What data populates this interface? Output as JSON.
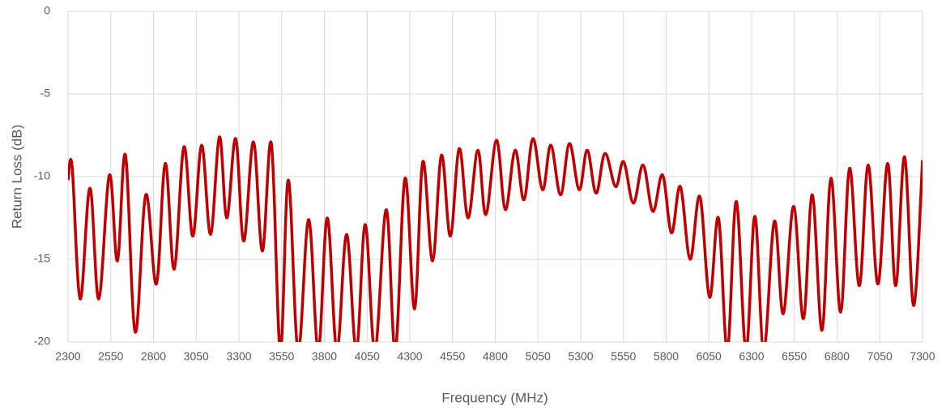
{
  "chart_data": {
    "type": "line",
    "x_label": "Frequency (MHz)",
    "y_label": "Return Loss (dB)",
    "x": [
      2300,
      2324,
      2371,
      2428,
      2480,
      2542,
      2589,
      2636,
      2693,
      2755,
      2817,
      2869,
      2921,
      2978,
      3030,
      3082,
      3134,
      3186,
      3229,
      3281,
      3328,
      3385,
      3437,
      3490,
      3542,
      3589,
      3646,
      3708,
      3764,
      3817,
      3873,
      3930,
      3987,
      4039,
      4096,
      4162,
      4215,
      4272,
      4328,
      4376,
      4433,
      4485,
      4537,
      4589,
      4641,
      4698,
      4745,
      4807,
      4859,
      4916,
      4968,
      5020,
      5077,
      5125,
      5182,
      5234,
      5291,
      5338,
      5390,
      5442,
      5504,
      5551,
      5608,
      5665,
      5722,
      5779,
      5831,
      5883,
      5940,
      5997,
      6054,
      6106,
      6158,
      6210,
      6267,
      6319,
      6371,
      6433,
      6485,
      6546,
      6603,
      6655,
      6712,
      6764,
      6821,
      6873,
      6930,
      6982,
      7039,
      7096,
      7143,
      7195,
      7248,
      7300
    ],
    "series": [
      {
        "name": "Return Loss",
        "color": "#c00000",
        "values": [
          -10.2,
          -9.4,
          -17.4,
          -10.7,
          -17.4,
          -9.9,
          -15.1,
          -8.7,
          -19.4,
          -11.1,
          -16.5,
          -9.2,
          -15.6,
          -8.2,
          -13.6,
          -8.1,
          -13.5,
          -7.6,
          -12.5,
          -7.7,
          -13.9,
          -7.9,
          -14.5,
          -8.0,
          -20.5,
          -10.2,
          -20.5,
          -12.6,
          -20.5,
          -12.5,
          -20.5,
          -13.5,
          -20.5,
          -12.9,
          -20.5,
          -12.0,
          -20.5,
          -10.1,
          -18.0,
          -9.1,
          -15.1,
          -8.7,
          -13.6,
          -8.3,
          -12.5,
          -8.4,
          -12.3,
          -7.8,
          -12.0,
          -8.4,
          -11.4,
          -7.7,
          -10.8,
          -8.1,
          -11.1,
          -8.0,
          -10.8,
          -8.4,
          -11.0,
          -8.6,
          -10.6,
          -9.1,
          -11.6,
          -9.3,
          -12.1,
          -9.9,
          -13.4,
          -10.6,
          -15.0,
          -11.2,
          -17.3,
          -12.5,
          -20.5,
          -11.5,
          -20.5,
          -12.4,
          -20.5,
          -12.7,
          -18.3,
          -11.8,
          -18.6,
          -11.1,
          -19.3,
          -10.1,
          -18.2,
          -9.5,
          -16.6,
          -9.3,
          -16.5,
          -9.2,
          -16.6,
          -8.8,
          -17.8,
          -9.0
        ]
      }
    ],
    "xlim": [
      2300,
      7300
    ],
    "xticks": [
      2300,
      2550,
      2800,
      3050,
      3300,
      3550,
      3800,
      4050,
      4300,
      4550,
      4800,
      5050,
      5300,
      5550,
      5800,
      6050,
      6300,
      6550,
      6800,
      7050,
      7300
    ],
    "ylim": [
      -20,
      0
    ],
    "yticks": [
      0,
      -5,
      -10,
      -15,
      -20
    ],
    "grid": true
  }
}
